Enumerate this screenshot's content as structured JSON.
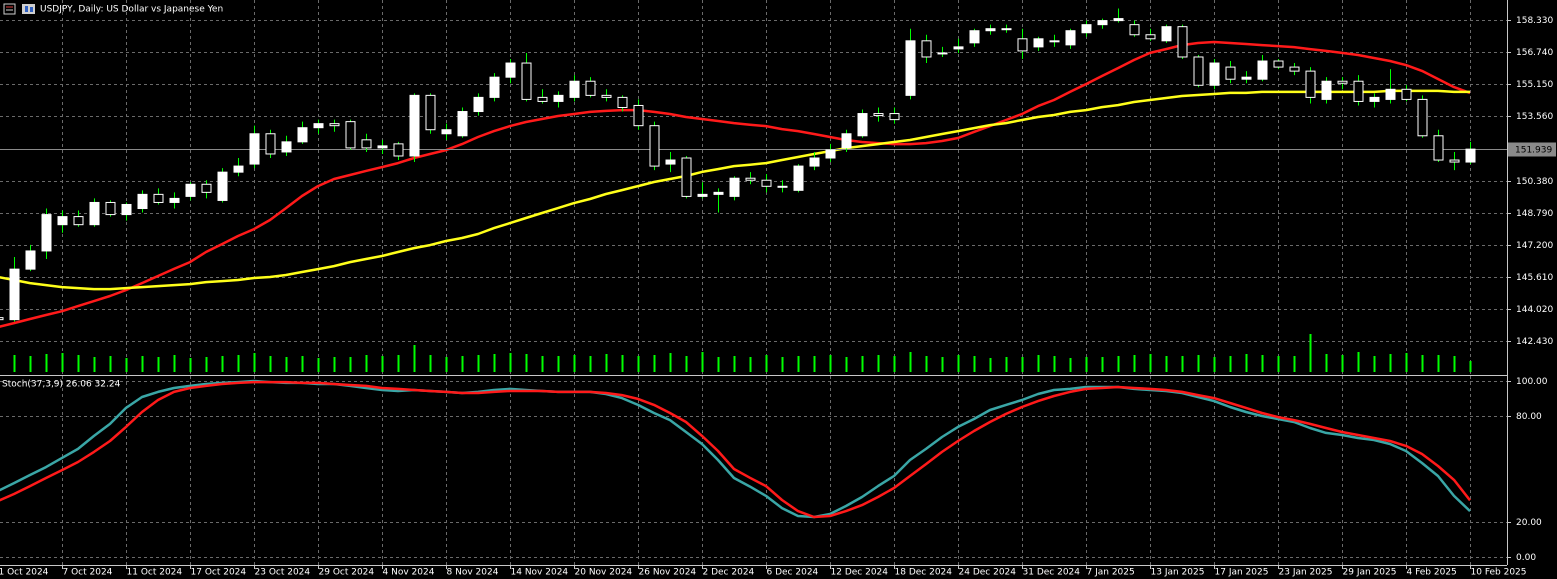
{
  "chart_data": [
    {
      "type": "candlestick",
      "title": "USDJPY, Daily:  US Dollar vs Japanese Yen",
      "categories": [
        "1 Oct 2024",
        null,
        null,
        null,
        "7 Oct 2024",
        null,
        null,
        null,
        "11 Oct 2024",
        null,
        null,
        null,
        "17 Oct 2024",
        null,
        null,
        null,
        "23 Oct 2024",
        null,
        null,
        null,
        "29 Oct 2024",
        null,
        null,
        null,
        "4 Nov 2024",
        null,
        null,
        null,
        "8 Nov 2024",
        null,
        null,
        null,
        "14 Nov 2024",
        null,
        null,
        null,
        "20 Nov 2024",
        null,
        null,
        null,
        "26 Nov 2024",
        null,
        null,
        null,
        "2 Dec 2024",
        null,
        null,
        null,
        "6 Dec 2024",
        null,
        null,
        null,
        "12 Dec 2024",
        null,
        null,
        null,
        "18 Dec 2024",
        null,
        null,
        null,
        "24 Dec 2024",
        null,
        null,
        null,
        "31 Dec 2024",
        null,
        null,
        null,
        "7 Jan 2025",
        null,
        null,
        null,
        "13 Jan 2025",
        null,
        null,
        null,
        "17 Jan 2025",
        null,
        null,
        null,
        "23 Jan 2025",
        null,
        null,
        null,
        "29 Jan 2025",
        null,
        null,
        null,
        "4 Feb 2025",
        null,
        null,
        null,
        "10 Feb 2025"
      ],
      "open": [
        143.6,
        143.5,
        146.0,
        146.9,
        148.2,
        148.6,
        148.2,
        149.3,
        148.7,
        149.0,
        149.7,
        149.3,
        149.6,
        150.2,
        149.4,
        150.8,
        151.2,
        152.7,
        151.8,
        152.3,
        153.0,
        153.2,
        153.3,
        152.4,
        152.0,
        152.2,
        151.6,
        154.6,
        152.7,
        152.6,
        153.8,
        154.5,
        155.5,
        156.2,
        154.5,
        154.3,
        154.5,
        155.3,
        154.6,
        154.5,
        154.1,
        153.1,
        151.2,
        151.5,
        149.6,
        149.7,
        149.6,
        150.5,
        150.4,
        150.1,
        149.9,
        151.1,
        151.5,
        152.0,
        152.6,
        153.7,
        153.7,
        154.6,
        157.3,
        156.7,
        156.9,
        157.2,
        157.8,
        157.9,
        157.4,
        157.0,
        157.3,
        157.1,
        157.7,
        158.1,
        158.3,
        158.1,
        157.6,
        157.3,
        158.0,
        156.5,
        155.1,
        156.0,
        155.4,
        155.4,
        156.3,
        156.0,
        155.8,
        154.4,
        155.3,
        155.3,
        154.3,
        154.4,
        154.9,
        154.4,
        152.6,
        151.4,
        151.3
      ],
      "high": [
        144.0,
        146.6,
        147.2,
        149.0,
        148.9,
        148.9,
        149.5,
        149.4,
        149.3,
        149.9,
        150.0,
        149.8,
        150.3,
        150.4,
        151.0,
        151.5,
        153.1,
        152.9,
        152.6,
        153.3,
        153.4,
        153.4,
        153.4,
        152.7,
        152.4,
        152.3,
        154.7,
        154.7,
        153.2,
        154.0,
        154.7,
        155.7,
        156.4,
        156.7,
        154.9,
        154.8,
        155.6,
        155.5,
        154.9,
        154.6,
        154.4,
        153.3,
        151.8,
        151.6,
        150.3,
        150.0,
        150.6,
        150.8,
        150.7,
        150.4,
        151.2,
        151.8,
        152.2,
        152.9,
        153.9,
        154.0,
        154.0,
        157.9,
        157.6,
        157.0,
        157.4,
        157.9,
        158.1,
        158.1,
        157.9,
        157.5,
        157.6,
        157.9,
        158.3,
        158.4,
        158.9,
        158.3,
        157.9,
        158.1,
        158.1,
        156.6,
        156.4,
        156.3,
        155.8,
        156.6,
        156.4,
        156.2,
        156.0,
        155.5,
        155.5,
        155.6,
        154.7,
        155.9,
        155.1,
        154.6,
        152.9,
        151.8,
        152.3
      ],
      "low": [
        143.3,
        143.4,
        145.9,
        146.5,
        147.8,
        148.1,
        148.1,
        148.6,
        148.4,
        148.8,
        149.2,
        149.0,
        149.4,
        149.5,
        149.3,
        150.6,
        151.0,
        151.5,
        151.6,
        152.2,
        152.7,
        152.8,
        151.9,
        151.8,
        151.7,
        151.4,
        151.3,
        152.7,
        152.4,
        152.5,
        153.6,
        154.3,
        155.2,
        154.3,
        154.2,
        154.0,
        154.3,
        154.5,
        154.3,
        153.8,
        152.9,
        150.9,
        150.8,
        149.5,
        149.5,
        148.8,
        149.4,
        150.2,
        149.8,
        149.8,
        149.8,
        150.9,
        151.3,
        151.8,
        152.5,
        153.3,
        153.2,
        154.4,
        156.2,
        156.5,
        156.7,
        157.0,
        157.6,
        157.7,
        156.4,
        156.8,
        157.0,
        156.9,
        157.5,
        157.9,
        158.2,
        157.5,
        157.3,
        157.2,
        156.4,
        155.0,
        154.9,
        155.2,
        155.2,
        155.3,
        155.9,
        155.6,
        154.2,
        154.2,
        154.9,
        154.1,
        154.0,
        154.2,
        154.3,
        152.5,
        151.3,
        150.9,
        151.2
      ],
      "close": [
        143.5,
        146.0,
        146.9,
        148.7,
        148.6,
        148.2,
        149.3,
        148.7,
        149.2,
        149.7,
        149.3,
        149.5,
        150.2,
        149.8,
        150.8,
        151.1,
        152.7,
        151.7,
        152.3,
        153.0,
        153.2,
        153.1,
        152.0,
        152.0,
        152.1,
        151.6,
        154.6,
        152.9,
        152.9,
        153.8,
        154.5,
        155.5,
        156.2,
        154.4,
        154.3,
        154.6,
        155.3,
        154.6,
        154.5,
        154.0,
        153.1,
        151.1,
        151.4,
        149.6,
        149.7,
        149.8,
        150.5,
        150.4,
        150.1,
        150.1,
        151.1,
        151.5,
        151.9,
        152.7,
        153.7,
        153.6,
        153.4,
        157.3,
        156.5,
        156.7,
        157.0,
        157.8,
        157.9,
        157.9,
        156.8,
        157.4,
        157.3,
        157.8,
        158.1,
        158.3,
        158.4,
        157.6,
        157.4,
        158.0,
        156.5,
        155.1,
        156.2,
        155.4,
        155.5,
        156.3,
        156.0,
        155.8,
        154.5,
        155.3,
        155.2,
        154.3,
        154.5,
        154.9,
        154.4,
        152.6,
        151.4,
        151.3,
        151.939
      ],
      "up_color": "#ffffff",
      "down_color": "#000000",
      "wick_color": "#00ff00",
      "lines": [
        {
          "color": "#ff1a1a",
          "values": [
            143.13,
            143.33,
            143.53,
            143.73,
            143.92,
            144.17,
            144.42,
            144.67,
            144.96,
            145.31,
            145.66,
            146.01,
            146.35,
            146.85,
            147.24,
            147.64,
            147.98,
            148.43,
            149.02,
            149.62,
            150.11,
            150.46,
            150.66,
            150.86,
            151.05,
            151.25,
            151.5,
            151.7,
            151.89,
            152.19,
            152.54,
            152.83,
            153.08,
            153.28,
            153.43,
            153.58,
            153.68,
            153.78,
            153.83,
            153.87,
            153.87,
            153.78,
            153.68,
            153.53,
            153.43,
            153.33,
            153.23,
            153.15,
            153.08,
            152.93,
            152.83,
            152.69,
            152.54,
            152.39,
            152.29,
            152.24,
            152.19,
            152.19,
            152.24,
            152.34,
            152.49,
            152.79,
            153.08,
            153.38,
            153.68,
            154.07,
            154.37,
            154.77,
            155.16,
            155.56,
            155.95,
            156.35,
            156.7,
            156.89,
            157.09,
            157.19,
            157.24,
            157.19,
            157.14,
            157.09,
            157.04,
            156.99,
            156.89,
            156.8,
            156.7,
            156.6,
            156.45,
            156.3,
            156.1,
            155.81,
            155.41,
            155.01,
            154.72
          ]
        },
        {
          "color": "#ffff1a",
          "values": [
            145.61,
            145.46,
            145.31,
            145.21,
            145.11,
            145.06,
            145.01,
            145.01,
            145.06,
            145.11,
            145.16,
            145.21,
            145.26,
            145.36,
            145.41,
            145.46,
            145.56,
            145.61,
            145.71,
            145.86,
            146.0,
            146.15,
            146.35,
            146.5,
            146.65,
            146.85,
            147.04,
            147.19,
            147.39,
            147.54,
            147.74,
            148.03,
            148.28,
            148.53,
            148.78,
            149.02,
            149.27,
            149.47,
            149.72,
            149.91,
            150.11,
            150.31,
            150.46,
            150.61,
            150.81,
            150.95,
            151.1,
            151.17,
            151.25,
            151.4,
            151.55,
            151.7,
            151.84,
            151.99,
            152.09,
            152.19,
            152.29,
            152.39,
            152.54,
            152.69,
            152.83,
            152.98,
            153.13,
            153.23,
            153.38,
            153.53,
            153.63,
            153.78,
            153.87,
            154.02,
            154.12,
            154.27,
            154.37,
            154.47,
            154.57,
            154.62,
            154.67,
            154.72,
            154.72,
            154.77,
            154.77,
            154.77,
            154.77,
            154.77,
            154.77,
            154.77,
            154.77,
            154.82,
            154.82,
            154.82,
            154.82,
            154.77,
            154.77
          ]
        }
      ],
      "volume": {
        "color": "#00ff00",
        "values": [
          18,
          17,
          16,
          18,
          19,
          17,
          15,
          16,
          14,
          16,
          15,
          17,
          14,
          15,
          16,
          17,
          19,
          16,
          15,
          16,
          14,
          15,
          15,
          17,
          16,
          17,
          27,
          17,
          15,
          16,
          17,
          18,
          19,
          18,
          16,
          16,
          17,
          16,
          18,
          17,
          16,
          17,
          19,
          16,
          20,
          15,
          16,
          15,
          17,
          15,
          16,
          16,
          17,
          15,
          16,
          17,
          16,
          20,
          16,
          15,
          17,
          16,
          14,
          15,
          15,
          17,
          16,
          14,
          15,
          15,
          16,
          17,
          18,
          16,
          16,
          17,
          15,
          16,
          18,
          17,
          16,
          16,
          38,
          18,
          17,
          20,
          16,
          18,
          19,
          17,
          17,
          16,
          11
        ]
      },
      "ylim": [
        140.81,
        159.32
      ],
      "yticks": [
        {
          "value": 158.33,
          "label": "158.330"
        },
        {
          "value": 156.74,
          "label": "156.740"
        },
        {
          "value": 155.15,
          "label": "155.150"
        },
        {
          "value": 153.56,
          "label": "153.560"
        },
        {
          "value": 150.38,
          "label": "150.380"
        },
        {
          "value": 148.79,
          "label": "148.790"
        },
        {
          "value": 147.2,
          "label": "147.200"
        },
        {
          "value": 145.61,
          "label": "145.610"
        },
        {
          "value": 144.02,
          "label": "144.020"
        },
        {
          "value": 142.43,
          "label": "142.430"
        }
      ],
      "grid": true
    },
    {
      "type": "line",
      "title": "Stoch(37,3,9) 26.06 32.24",
      "series": [
        {
          "color": "#3aa6a6",
          "values": [
            37.5,
            42.0,
            46.6,
            51.1,
            56.3,
            61.4,
            68.8,
            75.6,
            84.7,
            90.9,
            93.8,
            96.0,
            97.2,
            98.3,
            98.9,
            99.4,
            100.0,
            99.4,
            98.9,
            98.9,
            98.3,
            98.3,
            97.2,
            96.0,
            94.9,
            94.3,
            94.9,
            94.3,
            93.8,
            93.2,
            93.8,
            94.9,
            95.5,
            94.9,
            94.3,
            93.8,
            93.8,
            93.8,
            92.6,
            90.3,
            86.4,
            81.8,
            77.8,
            71.0,
            64.2,
            55.1,
            44.9,
            40.0,
            34.7,
            27.8,
            23.3,
            22.7,
            24.4,
            29.0,
            34.1,
            40.3,
            46.0,
            55.1,
            61.4,
            68.2,
            73.9,
            78.4,
            83.5,
            86.4,
            89.2,
            92.6,
            94.9,
            95.5,
            96.6,
            96.6,
            96.6,
            95.5,
            94.9,
            94.3,
            93.2,
            90.9,
            88.6,
            85.2,
            82.4,
            80.1,
            78.4,
            76.7,
            73.3,
            70.5,
            69.3,
            67.6,
            66.5,
            64.2,
            60.2,
            53.4,
            46.0,
            34.7,
            26.06
          ]
        },
        {
          "color": "#ff1a1a",
          "values": [
            31.8,
            35.8,
            40.3,
            44.9,
            49.4,
            54.0,
            59.7,
            65.9,
            73.9,
            82.4,
            89.2,
            93.8,
            96.0,
            97.2,
            98.3,
            98.9,
            99.4,
            99.4,
            99.4,
            98.9,
            98.9,
            98.3,
            97.7,
            97.2,
            96.0,
            95.5,
            94.9,
            94.3,
            93.8,
            93.2,
            93.2,
            93.8,
            94.3,
            94.3,
            94.3,
            93.8,
            93.8,
            93.8,
            93.2,
            92.0,
            89.8,
            86.4,
            81.8,
            76.7,
            68.8,
            60.2,
            50.0,
            45.0,
            40.3,
            32.4,
            26.1,
            22.7,
            23.3,
            26.1,
            29.5,
            34.1,
            39.2,
            46.0,
            52.8,
            59.7,
            65.9,
            71.6,
            76.7,
            81.3,
            85.2,
            88.6,
            91.5,
            93.8,
            95.5,
            96.0,
            96.6,
            96.0,
            95.5,
            94.9,
            93.8,
            92.0,
            90.3,
            87.5,
            84.7,
            81.8,
            79.5,
            77.8,
            75.6,
            73.3,
            71.0,
            69.3,
            67.6,
            65.9,
            63.1,
            58.5,
            51.7,
            43.8,
            32.24
          ]
        }
      ],
      "ylim": [
        -4.55,
        102.84
      ],
      "yticks": [
        {
          "value": 100,
          "label": "100.00"
        },
        {
          "value": 80,
          "label": "80.00"
        },
        {
          "value": 20,
          "label": "20.00"
        },
        {
          "value": 0,
          "label": "0.00"
        }
      ],
      "grid": true
    }
  ]
}
